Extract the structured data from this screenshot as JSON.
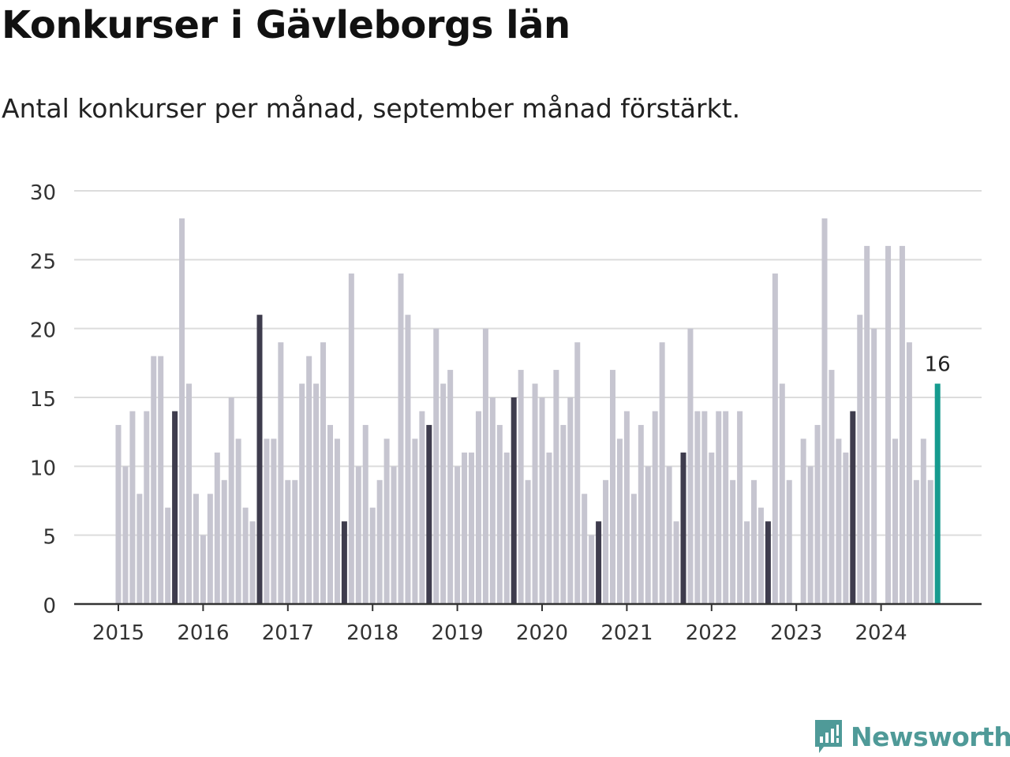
{
  "header": {
    "title": "Konkurser i Gävleborgs län",
    "subtitle": "Antal konkurser per månad, september månad förstärkt."
  },
  "brand": {
    "name": "Newsworthy",
    "logo_icon": "bar-chart-speech-bubble-icon"
  },
  "colors": {
    "bar_default": "#c6c5d0",
    "bar_september": "#3e3c4d",
    "bar_latest": "#169b8f",
    "grid": "#dcdcdc",
    "axis": "#333333",
    "brand": "#4f9a98"
  },
  "chart_data": {
    "type": "bar",
    "title": "Konkurser i Gävleborgs län",
    "subtitle": "Antal konkurser per månad, september månad förstärkt.",
    "start": "2015-01",
    "frequency": "monthly",
    "end": "2024-09",
    "highlight_month": "september",
    "values": [
      13,
      10,
      14,
      8,
      14,
      18,
      18,
      7,
      14,
      28,
      16,
      8,
      5,
      8,
      11,
      9,
      15,
      12,
      7,
      6,
      21,
      12,
      12,
      19,
      9,
      9,
      16,
      18,
      16,
      19,
      13,
      12,
      6,
      24,
      10,
      13,
      7,
      9,
      12,
      10,
      24,
      21,
      12,
      14,
      13,
      20,
      16,
      17,
      10,
      11,
      11,
      14,
      20,
      15,
      13,
      11,
      15,
      17,
      9,
      16,
      15,
      11,
      17,
      13,
      15,
      19,
      8,
      5,
      6,
      9,
      17,
      12,
      14,
      8,
      13,
      10,
      14,
      19,
      10,
      6,
      11,
      20,
      14,
      14,
      11,
      14,
      14,
      9,
      14,
      6,
      9,
      7,
      6,
      24,
      16,
      9,
      0,
      12,
      10,
      13,
      28,
      17,
      12,
      11,
      14,
      21,
      26,
      20,
      0,
      26,
      12,
      26,
      19,
      9,
      12,
      9,
      16
    ],
    "latest_label": "16",
    "x_tick_labels": [
      "2015",
      "2016",
      "2017",
      "2018",
      "2019",
      "2020",
      "2021",
      "2022",
      "2023",
      "2024"
    ],
    "y_ticks": [
      0,
      5,
      10,
      15,
      20,
      25,
      30
    ],
    "ylim": [
      0,
      30
    ],
    "xlabel": "",
    "ylabel": "",
    "grid": true,
    "legend": "none"
  }
}
